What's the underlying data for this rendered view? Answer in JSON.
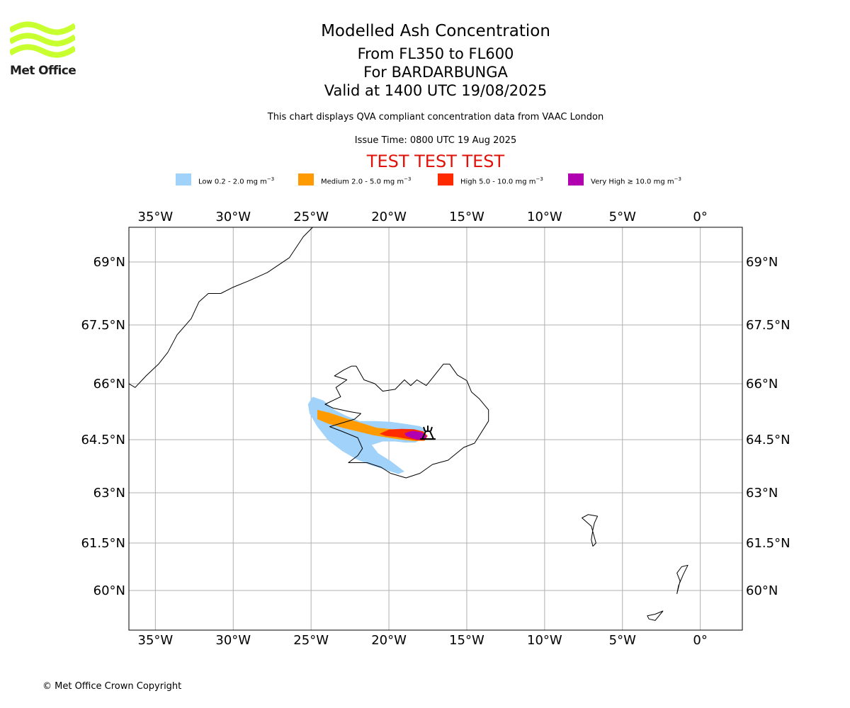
{
  "logo": {
    "text": "Met Office",
    "icon": "met-office-wave-logo",
    "color": "#c8ff2e"
  },
  "header": {
    "title": "Modelled Ash Concentration",
    "flight_levels": "From FL350 to FL600",
    "volcano": "For BARDARBUNGA",
    "valid_time": "Valid at 1400 UTC 19/08/2025",
    "description": "This chart displays QVA compliant concentration data from VAAC London",
    "issue_time": "Issue Time: 0800 UTC 19 Aug 2025",
    "test_banner": "TEST TEST TEST",
    "test_color": "#e0120a"
  },
  "legend": [
    {
      "label": "Low 0.2 - 2.0 mg m",
      "unit_exp": "−3",
      "color": "#a0d2fa"
    },
    {
      "label": "Medium 2.0 - 5.0 mg m",
      "unit_exp": "−3",
      "color": "#ff9a00"
    },
    {
      "label": "High 5.0 - 10.0 mg m",
      "unit_exp": "−3",
      "color": "#ff2a00"
    },
    {
      "label": "Very High ≥ 10.0 mg m",
      "unit_exp": "−3",
      "color": "#b000b0"
    }
  ],
  "map": {
    "projection": "plate-carree-scaled",
    "lon_range": [
      -36.7,
      2.7
    ],
    "lat_range": [
      59.1,
      69.9
    ],
    "grid": true,
    "grid_color": "#b0b0b0",
    "lon_ticks": [
      {
        "value": -35,
        "label": "35°W"
      },
      {
        "value": -30,
        "label": "30°W"
      },
      {
        "value": -25,
        "label": "25°W"
      },
      {
        "value": -20,
        "label": "20°W"
      },
      {
        "value": -15,
        "label": "15°W"
      },
      {
        "value": -10,
        "label": "10°W"
      },
      {
        "value": -5,
        "label": "5°W"
      },
      {
        "value": 0,
        "label": "0°"
      }
    ],
    "lat_ticks": [
      {
        "value": 69,
        "label": "69°N"
      },
      {
        "value": 67.5,
        "label": "67.5°N"
      },
      {
        "value": 66,
        "label": "66°N"
      },
      {
        "value": 64.5,
        "label": "64.5°N"
      },
      {
        "value": 63,
        "label": "63°N"
      },
      {
        "value": 61.5,
        "label": "61.5°N"
      },
      {
        "value": 60,
        "label": "60°N"
      }
    ],
    "volcano_marker": {
      "name": "volcano-icon",
      "lon": -17.5,
      "lat": 64.65
    },
    "ash_levels": [
      {
        "level": "low",
        "color": "#a0d2fa",
        "polygon": [
          [
            -24.9,
            65.65
          ],
          [
            -24.2,
            65.55
          ],
          [
            -23.5,
            65.3
          ],
          [
            -22.8,
            65.15
          ],
          [
            -21.9,
            65.0
          ],
          [
            -20.9,
            65.0
          ],
          [
            -19.9,
            64.98
          ],
          [
            -18.9,
            64.92
          ],
          [
            -18.0,
            64.86
          ],
          [
            -17.6,
            64.75
          ],
          [
            -17.7,
            64.55
          ],
          [
            -18.3,
            64.42
          ],
          [
            -19.0,
            64.42
          ],
          [
            -19.6,
            64.45
          ],
          [
            -20.4,
            64.45
          ],
          [
            -21.1,
            64.35
          ],
          [
            -20.7,
            64.12
          ],
          [
            -19.9,
            63.9
          ],
          [
            -19.0,
            63.6
          ],
          [
            -19.4,
            63.53
          ],
          [
            -20.3,
            63.66
          ],
          [
            -21.3,
            63.8
          ],
          [
            -22.1,
            63.95
          ],
          [
            -23.0,
            64.18
          ],
          [
            -23.9,
            64.48
          ],
          [
            -24.6,
            64.85
          ],
          [
            -25.1,
            65.2
          ],
          [
            -25.2,
            65.45
          ]
        ]
      },
      {
        "level": "medium",
        "color": "#ff9a00",
        "polygon": [
          [
            -24.6,
            65.3
          ],
          [
            -23.8,
            65.22
          ],
          [
            -22.8,
            65.08
          ],
          [
            -21.8,
            64.95
          ],
          [
            -20.8,
            64.82
          ],
          [
            -19.8,
            64.78
          ],
          [
            -18.7,
            64.78
          ],
          [
            -17.8,
            64.72
          ],
          [
            -17.5,
            64.6
          ],
          [
            -17.7,
            64.47
          ],
          [
            -18.4,
            64.46
          ],
          [
            -19.2,
            64.5
          ],
          [
            -20.0,
            64.55
          ],
          [
            -21.0,
            64.62
          ],
          [
            -22.0,
            64.72
          ],
          [
            -23.0,
            64.82
          ],
          [
            -23.9,
            64.93
          ],
          [
            -24.6,
            65.05
          ]
        ]
      },
      {
        "level": "high",
        "color": "#ff2a00",
        "polygon": [
          [
            -20.6,
            64.66
          ],
          [
            -20.0,
            64.77
          ],
          [
            -19.2,
            64.79
          ],
          [
            -18.4,
            64.78
          ],
          [
            -17.8,
            64.72
          ],
          [
            -17.55,
            64.6
          ],
          [
            -17.7,
            64.48
          ],
          [
            -18.2,
            64.48
          ],
          [
            -18.8,
            64.52
          ],
          [
            -19.5,
            64.57
          ],
          [
            -20.2,
            64.6
          ]
        ]
      },
      {
        "level": "very-high",
        "color": "#b000b0",
        "polygon": [
          [
            -19.0,
            64.67
          ],
          [
            -18.5,
            64.74
          ],
          [
            -17.9,
            64.7
          ],
          [
            -17.55,
            64.6
          ],
          [
            -17.7,
            64.5
          ],
          [
            -18.2,
            64.5
          ],
          [
            -18.6,
            64.55
          ],
          [
            -18.9,
            64.6
          ]
        ]
      }
    ],
    "coastlines": [
      {
        "name": "iceland-coastline",
        "closed": true,
        "points": [
          [
            -22.9,
            66.35
          ],
          [
            -23.5,
            66.2
          ],
          [
            -22.7,
            66.1
          ],
          [
            -23.4,
            65.9
          ],
          [
            -23.1,
            65.65
          ],
          [
            -24.1,
            65.45
          ],
          [
            -23.6,
            65.35
          ],
          [
            -22.5,
            65.25
          ],
          [
            -21.8,
            65.2
          ],
          [
            -22.2,
            65.05
          ],
          [
            -23.8,
            64.85
          ],
          [
            -23.0,
            64.72
          ],
          [
            -22.0,
            64.55
          ],
          [
            -21.7,
            64.25
          ],
          [
            -22.0,
            64.05
          ],
          [
            -22.6,
            63.85
          ],
          [
            -21.4,
            63.85
          ],
          [
            -20.5,
            63.72
          ],
          [
            -19.9,
            63.55
          ],
          [
            -18.9,
            63.42
          ],
          [
            -18.0,
            63.55
          ],
          [
            -17.2,
            63.8
          ],
          [
            -16.2,
            63.92
          ],
          [
            -15.2,
            64.28
          ],
          [
            -14.5,
            64.4
          ],
          [
            -13.6,
            65.0
          ],
          [
            -13.6,
            65.3
          ],
          [
            -14.2,
            65.6
          ],
          [
            -14.7,
            65.78
          ],
          [
            -15.0,
            66.08
          ],
          [
            -15.6,
            66.22
          ],
          [
            -16.1,
            66.5
          ],
          [
            -16.5,
            66.5
          ],
          [
            -17.1,
            66.2
          ],
          [
            -17.6,
            65.95
          ],
          [
            -18.2,
            66.1
          ],
          [
            -18.6,
            65.95
          ],
          [
            -19.0,
            66.1
          ],
          [
            -19.6,
            65.85
          ],
          [
            -20.4,
            65.8
          ],
          [
            -20.9,
            66.0
          ],
          [
            -21.6,
            66.1
          ],
          [
            -22.1,
            66.45
          ],
          [
            -22.4,
            66.45
          ]
        ]
      },
      {
        "name": "greenland-coastline",
        "closed": false,
        "points": [
          [
            -36.7,
            66.0
          ],
          [
            -36.3,
            65.9
          ],
          [
            -35.6,
            66.2
          ],
          [
            -34.8,
            66.5
          ],
          [
            -34.2,
            66.8
          ],
          [
            -33.6,
            67.25
          ],
          [
            -32.7,
            67.65
          ],
          [
            -32.2,
            68.05
          ],
          [
            -31.6,
            68.25
          ],
          [
            -30.8,
            68.25
          ],
          [
            -30.0,
            68.4
          ],
          [
            -29.0,
            68.55
          ],
          [
            -27.8,
            68.75
          ],
          [
            -26.4,
            69.1
          ],
          [
            -25.5,
            69.6
          ],
          [
            -24.7,
            69.9
          ]
        ]
      },
      {
        "name": "faroe-islands-coastline",
        "closed": true,
        "points": [
          [
            -7.6,
            62.25
          ],
          [
            -7.2,
            62.35
          ],
          [
            -6.6,
            62.3
          ],
          [
            -6.8,
            62.1
          ],
          [
            -6.9,
            61.9
          ],
          [
            -7.0,
            61.6
          ],
          [
            -6.9,
            61.4
          ],
          [
            -6.7,
            61.5
          ],
          [
            -7.0,
            62.0
          ]
        ]
      },
      {
        "name": "shetland-coastline",
        "closed": true,
        "points": [
          [
            -1.2,
            60.75
          ],
          [
            -0.8,
            60.8
          ],
          [
            -1.1,
            60.5
          ],
          [
            -1.4,
            60.15
          ],
          [
            -1.5,
            59.9
          ],
          [
            -1.3,
            60.3
          ],
          [
            -1.5,
            60.55
          ]
        ]
      },
      {
        "name": "orkney-coastline",
        "closed": true,
        "points": [
          [
            -3.4,
            59.2
          ],
          [
            -2.9,
            59.25
          ],
          [
            -2.4,
            59.35
          ],
          [
            -2.9,
            59.05
          ],
          [
            -3.3,
            59.1
          ]
        ]
      }
    ]
  },
  "footer": {
    "copyright": "© Met Office Crown Copyright"
  }
}
